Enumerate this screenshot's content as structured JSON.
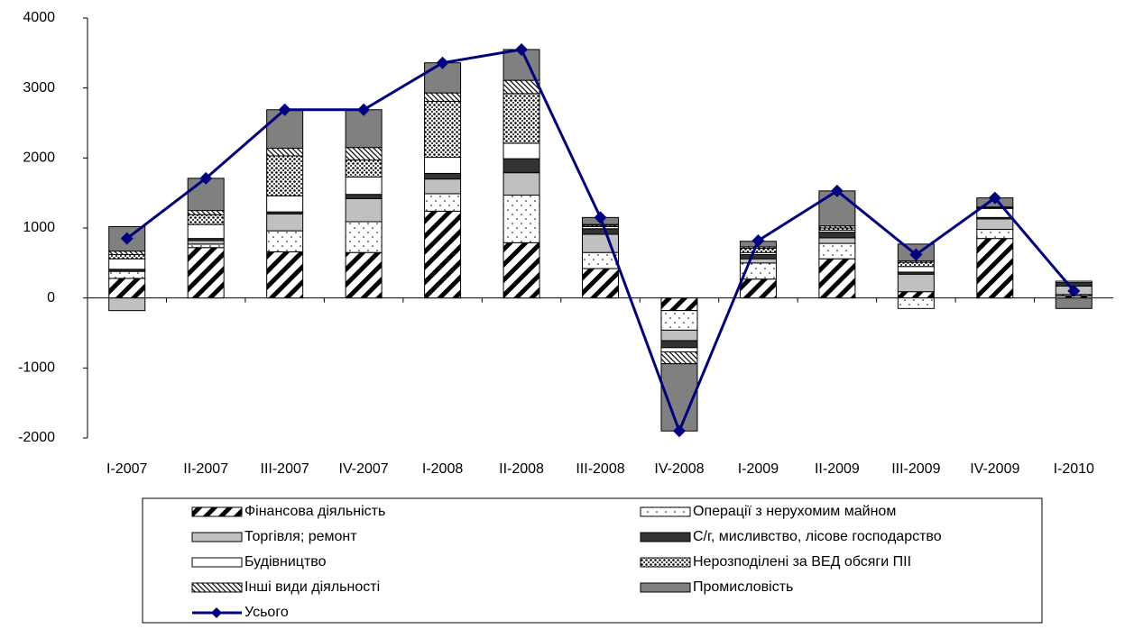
{
  "chart_data": {
    "type": "stacked-bar-line",
    "categories": [
      "I-2007",
      "II-2007",
      "III-2007",
      "IV-2007",
      "I-2008",
      "II-2008",
      "III-2008",
      "IV-2008",
      "I-2009",
      "II-2009",
      "III-2009",
      "IV-2009",
      "I-2010"
    ],
    "series": [
      {
        "name": "Фінансова діяльність",
        "color": "#000000",
        "pattern": "diag",
        "values": [
          280,
          720,
          660,
          650,
          1240,
          790,
          420,
          -180,
          270,
          560,
          90,
          850,
          30
        ]
      },
      {
        "name": "Операції з нерухомим майном",
        "color": "#000000",
        "pattern": "dots",
        "values": [
          100,
          50,
          300,
          440,
          250,
          680,
          230,
          -280,
          230,
          220,
          -150,
          130,
          20
        ]
      },
      {
        "name": "Торгівля; ремонт",
        "color": "#c0c0c0",
        "pattern": "solid",
        "values": [
          -180,
          50,
          240,
          330,
          210,
          320,
          260,
          -150,
          60,
          80,
          250,
          150,
          120
        ]
      },
      {
        "name": "С/г, мисливство, лісове господарство",
        "color": "#333333",
        "pattern": "solid",
        "values": [
          30,
          30,
          30,
          60,
          80,
          200,
          80,
          -100,
          60,
          80,
          30,
          20,
          50
        ]
      },
      {
        "name": "Будівництво",
        "color": "#ffffff",
        "pattern": "solid",
        "values": [
          150,
          200,
          230,
          250,
          230,
          220,
          30,
          -60,
          30,
          30,
          80,
          130,
          20
        ]
      },
      {
        "name": "Нерозподілені за ВЕД обсяги ПІІ",
        "color": "#000000",
        "pattern": "dense-dots",
        "values": [
          60,
          140,
          570,
          240,
          800,
          710,
          20,
          0,
          60,
          30,
          60,
          10,
          0
        ]
      },
      {
        "name": "Інші види діяльності",
        "color": "#000000",
        "pattern": "fine-diag",
        "values": [
          50,
          60,
          110,
          180,
          120,
          190,
          10,
          -170,
          20,
          30,
          20,
          10,
          0
        ]
      },
      {
        "name": "Промисловість",
        "color": "#808080",
        "pattern": "solid",
        "values": [
          350,
          460,
          550,
          540,
          430,
          440,
          100,
          -960,
          80,
          500,
          240,
          130,
          -150
        ]
      },
      {
        "name": "Усього",
        "color": "#000080",
        "type": "line",
        "values": [
          850,
          1710,
          2690,
          2690,
          3360,
          3550,
          1150,
          -1900,
          820,
          1530,
          620,
          1430,
          100
        ]
      }
    ],
    "ylim": [
      -2000,
      4000
    ],
    "yticks": [
      -2000,
      -1000,
      0,
      1000,
      2000,
      3000,
      4000
    ],
    "legend": "bottom"
  }
}
